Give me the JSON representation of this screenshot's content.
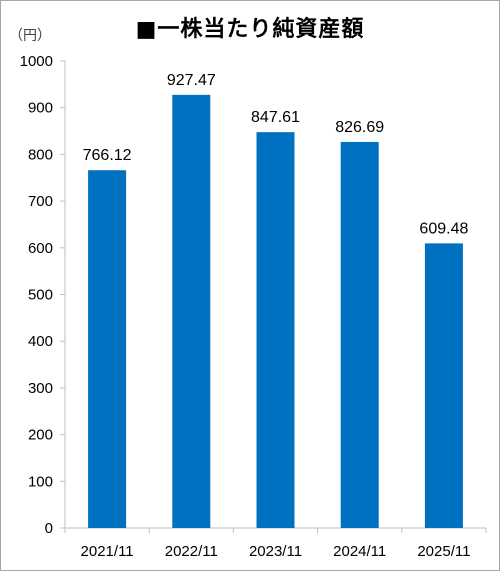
{
  "chart_data": {
    "type": "bar",
    "title": "■一株当たり純資産額",
    "unit_label": "（円）",
    "categories": [
      "2021/11",
      "2022/11",
      "2023/11",
      "2024/11",
      "2025/11"
    ],
    "values": [
      766.12,
      927.47,
      847.61,
      826.69,
      609.48
    ],
    "data_labels": [
      "766.12",
      "927.47",
      "847.61",
      "826.69",
      "609.48"
    ],
    "ylim": [
      0,
      1000
    ],
    "yticks": [
      0,
      100,
      200,
      300,
      400,
      500,
      600,
      700,
      800,
      900,
      1000
    ],
    "bar_color": "#0070C0",
    "grid": false,
    "legend": "none"
  }
}
